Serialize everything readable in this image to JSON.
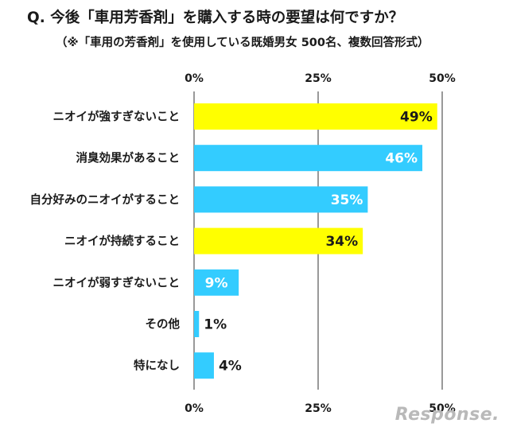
{
  "chart_data": {
    "type": "bar",
    "orientation": "horizontal",
    "title": "Q. 今後「車用芳香剤」を購入する時の要望は何ですか？",
    "subtitle": "（※「車用の芳香剤」を使用している既婚男女 500名、複数回答形式）",
    "categories": [
      "ニオイが強すぎないこと",
      "消臭効果があること",
      "自分好みのニオイがすること",
      "ニオイが持続すること",
      "ニオイが弱すぎないこと",
      "その他",
      "特になし"
    ],
    "values": [
      49,
      46,
      35,
      34,
      9,
      1,
      4
    ],
    "value_labels": [
      "49%",
      "46%",
      "35%",
      "34%",
      "9%",
      "1%",
      "4%"
    ],
    "bar_colors": [
      "#ffff00",
      "#33ccff",
      "#33ccff",
      "#ffff00",
      "#33ccff",
      "#33ccff",
      "#33ccff"
    ],
    "xlim": [
      0,
      50
    ],
    "xticks": [
      0,
      25,
      50
    ],
    "xtick_labels": [
      "0%",
      "25%",
      "50%"
    ],
    "grid": "vertical lines at ticks"
  },
  "watermark": "Response."
}
